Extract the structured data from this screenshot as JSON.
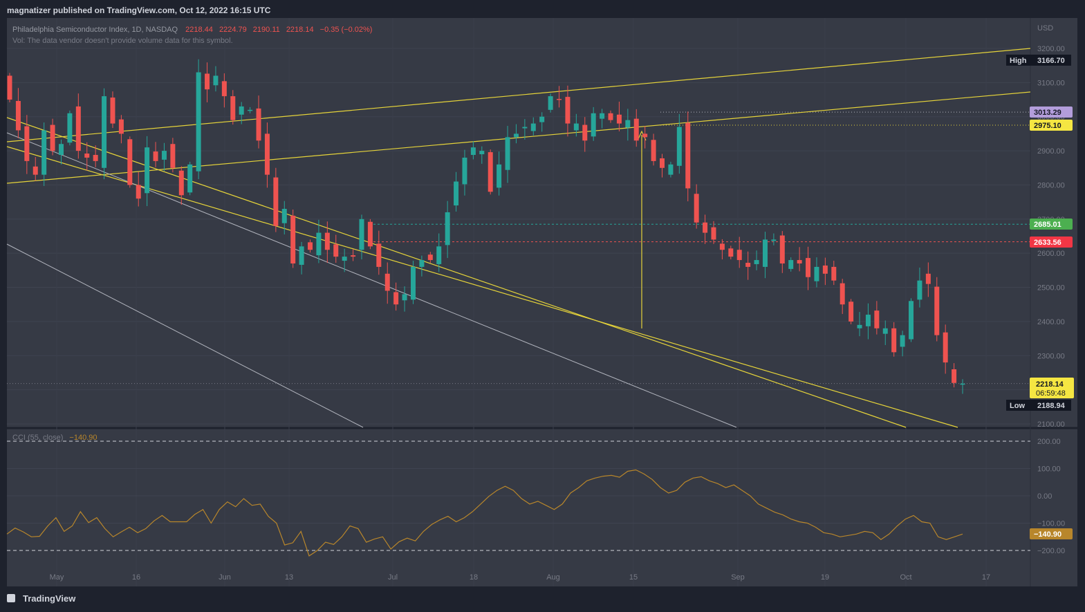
{
  "header": {
    "published": "magnatizer published on TradingView.com, Oct 12, 2022 16:15 UTC"
  },
  "footer": {
    "brand": "TradingView"
  },
  "legend": {
    "symbol": "Philadelphia Semiconductor Index, 1D, NASDAQ",
    "o": "2218.44",
    "h": "2224.79",
    "l": "2190.11",
    "c": "2218.14",
    "change": "−0.35 (−0.02%)",
    "volume_note": "Vol: The data vendor doesn't provide volume data for this symbol.",
    "cci_label": "CCI (55, close)",
    "cci_value": "−140.90"
  },
  "price_axis": {
    "currency": "USD",
    "ticks": [
      "3200.00",
      "3100.00",
      "3000.00",
      "2900.00",
      "2800.00",
      "2700.00",
      "2600.00",
      "2500.00",
      "2400.00",
      "2300.00",
      "2200.00",
      "2100.00"
    ]
  },
  "cci_axis": {
    "ticks": [
      "200.00",
      "100.00",
      "0.00",
      "−100.00",
      "−200.00"
    ]
  },
  "time_axis": {
    "labels": [
      "May",
      "16",
      "Jun",
      "13",
      "Jul",
      "18",
      "Aug",
      "15",
      "Sep",
      "19",
      "Oct",
      "17"
    ]
  },
  "markers": {
    "high_label": "High",
    "high_value": "3166.70",
    "low_label": "Low",
    "low_value": "2188.94",
    "level_purple": "3013.29",
    "level_yellow": "2975.10",
    "level_green": "2685.01",
    "level_red": "2633.56",
    "last_price": "2218.14",
    "countdown": "06:59:48",
    "cci_last": "−140.90"
  },
  "colors": {
    "background": "#1e222d",
    "pane": "#363a45",
    "up": "#26a69a",
    "down": "#ef5350",
    "trendline": "#e6d43a",
    "gray_line": "#b2b5be",
    "cci_line": "#b8862b",
    "text": "#d1d4dc",
    "muted": "#787b86"
  },
  "chart_data": [
    {
      "type": "candlestick",
      "x_labels": [
        "May",
        "16",
        "Jun",
        "13",
        "Jul",
        "18",
        "Aug",
        "15",
        "Sep",
        "19",
        "Oct",
        "17"
      ],
      "ylim": [
        2080,
        3300
      ],
      "close_series": [
        3050,
        2960,
        2870,
        2830,
        2960,
        2900,
        2920,
        3010,
        2900,
        2880,
        2870,
        3060,
        2980,
        2950,
        2800,
        2760,
        2910,
        2870,
        2900,
        2850,
        2770,
        2860,
        3130,
        3080,
        3120,
        3060,
        2990,
        3030,
        3020,
        2930,
        2830,
        2680,
        2730,
        2570,
        2620,
        2610,
        2660,
        2610,
        2590,
        2590,
        2590,
        2700,
        2620,
        2560,
        2490,
        2450,
        2480,
        2560,
        2580,
        2580,
        2620,
        2720,
        2810,
        2880,
        2910,
        2900,
        2780,
        2860,
        2940,
        2950,
        2970,
        2980,
        3000,
        3060,
        3050,
        2980,
        2980,
        2930,
        3010,
        3010,
        2990,
        2980,
        2990,
        2930,
        2940,
        2870,
        2850,
        2860,
        2970,
        2790,
        2690,
        2660,
        2640,
        2610,
        2590,
        2580,
        2560,
        2580,
        2640,
        2640,
        2570,
        2580,
        2570,
        2530,
        2560,
        2540,
        2520,
        2450,
        2400,
        2390,
        2420,
        2380,
        2380,
        2310,
        2360,
        2460,
        2520,
        2510,
        2360,
        2280,
        2220,
        2218
      ],
      "high": "3166.70",
      "low": "2188.94",
      "last": "2218.14",
      "levels": [
        3013.29,
        2975.1,
        2685.01,
        2633.56
      ]
    },
    {
      "type": "line",
      "title": "CCI (55, close)",
      "ylim": [
        -240,
        220
      ],
      "reference_levels": [
        200,
        -200
      ],
      "values": [
        -140,
        -118,
        -132,
        -150,
        -148,
        -110,
        -80,
        -130,
        -110,
        -58,
        -98,
        -80,
        -120,
        -150,
        -132,
        -115,
        -135,
        -120,
        -92,
        -72,
        -95,
        -95,
        -95,
        -68,
        -50,
        -100,
        -50,
        -22,
        -40,
        -10,
        -35,
        -30,
        -75,
        -100,
        -180,
        -172,
        -130,
        -220,
        -200,
        -170,
        -178,
        -150,
        -110,
        -120,
        -170,
        -158,
        -150,
        -195,
        -168,
        -155,
        -165,
        -130,
        -105,
        -88,
        -75,
        -95,
        -80,
        -58,
        -30,
        -2,
        20,
        35,
        20,
        -10,
        -30,
        -20,
        -35,
        -50,
        -30,
        10,
        30,
        55,
        65,
        72,
        75,
        68,
        90,
        95,
        80,
        60,
        30,
        10,
        20,
        50,
        65,
        70,
        55,
        45,
        30,
        40,
        20,
        0,
        -30,
        -45,
        -60,
        -70,
        -85,
        -95,
        -100,
        -115,
        -135,
        -140,
        -150,
        -145,
        -140,
        -130,
        -135,
        -160,
        -140,
        -110,
        -85,
        -72,
        -95,
        -100,
        -150,
        -160,
        -150,
        -140
      ]
    }
  ]
}
